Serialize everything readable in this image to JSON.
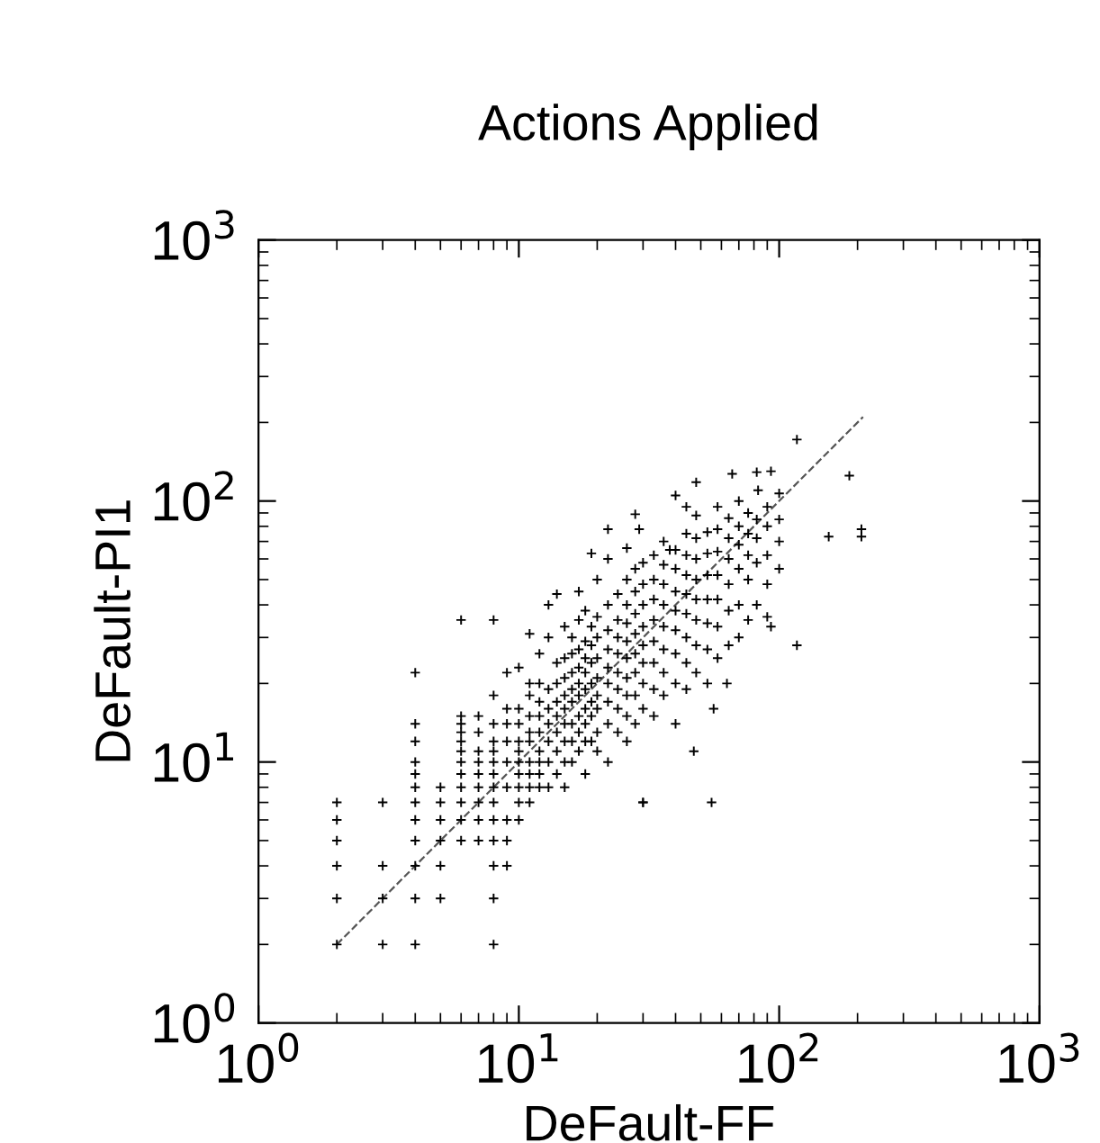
{
  "chart_data": {
    "type": "scatter",
    "title": "Actions Applied",
    "xlabel": "DeFault-FF",
    "ylabel": "DeFault-PI1",
    "log": "xy",
    "grid": false,
    "xlim": [
      1,
      1000
    ],
    "ylim": [
      1,
      1000
    ],
    "xticks": [
      {
        "value": 1,
        "label": "10$^{0}$"
      },
      {
        "value": 10,
        "label": "10$^{1}$"
      },
      {
        "value": 100,
        "label": "10$^{2}$"
      },
      {
        "value": 1000,
        "label": "10$^{3}$"
      }
    ],
    "yticks": [
      {
        "value": 1,
        "label": "10$^{0}$"
      },
      {
        "value": 10,
        "label": "10$^{1}$"
      },
      {
        "value": 100,
        "label": "10$^{2}$"
      },
      {
        "value": 1000,
        "label": "10$^{3}$"
      }
    ],
    "series": [
      {
        "color": "#000000",
        "marker": "cross",
        "x": [
          2,
          2,
          2,
          2,
          2,
          2,
          3,
          3,
          3,
          3,
          4,
          4,
          4,
          4,
          4,
          4,
          4,
          4,
          4,
          4,
          4,
          4,
          5,
          5,
          5,
          5,
          5,
          5,
          6,
          6,
          6,
          6,
          6,
          6,
          6,
          6,
          6,
          6,
          6,
          6,
          7,
          7,
          7,
          7,
          7,
          7,
          7,
          7,
          7,
          8,
          8,
          8,
          8,
          8,
          8,
          8,
          8,
          8,
          8,
          8,
          8,
          8,
          8,
          9,
          9,
          9,
          9,
          9,
          9,
          9,
          9,
          9,
          10,
          10,
          10,
          10,
          10,
          10,
          10,
          10,
          10,
          10,
          11,
          11,
          11,
          11,
          11,
          11,
          11,
          11,
          11,
          12,
          12,
          12,
          12,
          12,
          12,
          12,
          12,
          12,
          13,
          13,
          13,
          13,
          13,
          13,
          13,
          14,
          14,
          14,
          14,
          14,
          14,
          14,
          14,
          15,
          15,
          15,
          15,
          15,
          15,
          15,
          15,
          15,
          16,
          16,
          16,
          16,
          16,
          16,
          16,
          16,
          17,
          17,
          17,
          17,
          17,
          17,
          17,
          17,
          17,
          18,
          18,
          18,
          18,
          18,
          18,
          18,
          18,
          18,
          19,
          19,
          19,
          19,
          19,
          19,
          19,
          19,
          20,
          20,
          20,
          20,
          20,
          20,
          20,
          20,
          20,
          22,
          22,
          22,
          22,
          22,
          22,
          22,
          22,
          22,
          24,
          24,
          24,
          24,
          24,
          24,
          24,
          24,
          26,
          26,
          26,
          26,
          26,
          26,
          26,
          26,
          26,
          26,
          28,
          28,
          28,
          28,
          28,
          28,
          28,
          28,
          28,
          30,
          30,
          30,
          30,
          30,
          30,
          30,
          30,
          30,
          33,
          33,
          33,
          33,
          33,
          33,
          33,
          33,
          36,
          36,
          36,
          36,
          36,
          36,
          36,
          36,
          40,
          40,
          40,
          40,
          40,
          40,
          40,
          40,
          40,
          44,
          44,
          44,
          44,
          44,
          44,
          44,
          44,
          44,
          48,
          48,
          48,
          48,
          48,
          48,
          48,
          48,
          53,
          53,
          53,
          53,
          53,
          53,
          53,
          58,
          58,
          58,
          58,
          58,
          58,
          58,
          64,
          64,
          64,
          64,
          64,
          64,
          70,
          70,
          70,
          70,
          70,
          70,
          76,
          76,
          76,
          76,
          76,
          82,
          82,
          82,
          82,
          82,
          90,
          90,
          90,
          90,
          90,
          100,
          100,
          100,
          117,
          186,
          207,
          207,
          155,
          117,
          55,
          30,
          47,
          56,
          63,
          93,
          83,
          48,
          38,
          29,
          22,
          13,
          11,
          66,
          100,
          93
        ],
        "values": [
          2,
          3,
          4,
          5,
          6,
          7,
          2,
          3,
          4,
          7,
          2,
          3,
          4,
          5,
          6,
          7,
          8,
          9,
          10,
          12,
          14,
          22,
          3,
          4,
          5,
          6,
          7,
          8,
          5,
          6,
          7,
          8,
          9,
          10,
          11,
          12,
          13,
          14,
          15,
          35,
          5,
          6,
          7,
          8,
          9,
          10,
          11,
          13,
          15,
          2,
          3,
          4,
          5,
          6,
          7,
          8,
          9,
          10,
          11,
          12,
          14,
          18,
          35,
          4,
          5,
          6,
          8,
          10,
          12,
          14,
          16,
          22,
          6,
          7,
          8,
          9,
          10,
          11,
          12,
          14,
          16,
          23,
          7,
          8,
          9,
          10,
          12,
          13,
          15,
          18,
          31,
          8,
          9,
          10,
          11,
          13,
          15,
          17,
          20,
          26,
          8,
          10,
          12,
          14,
          16,
          19,
          40,
          9,
          11,
          13,
          15,
          17,
          20,
          24,
          44,
          8,
          10,
          12,
          14,
          16,
          18,
          21,
          25,
          33,
          10,
          12,
          14,
          17,
          19,
          22,
          26,
          30,
          11,
          13,
          15,
          18,
          20,
          23,
          27,
          35,
          45,
          9,
          12,
          14,
          16,
          19,
          22,
          25,
          29,
          38,
          12,
          15,
          17,
          20,
          24,
          28,
          33,
          63,
          11,
          13,
          16,
          18,
          21,
          25,
          30,
          36,
          50,
          10,
          14,
          17,
          20,
          23,
          27,
          32,
          40,
          78,
          13,
          16,
          19,
          22,
          26,
          30,
          35,
          44,
          12,
          15,
          18,
          21,
          25,
          29,
          34,
          40,
          50,
          66,
          14,
          18,
          22,
          26,
          31,
          37,
          45,
          55,
          89,
          7,
          16,
          20,
          24,
          28,
          33,
          40,
          48,
          58,
          15,
          19,
          24,
          29,
          35,
          42,
          50,
          62,
          18,
          22,
          27,
          33,
          40,
          48,
          57,
          70,
          14,
          20,
          26,
          32,
          38,
          45,
          55,
          65,
          105,
          19,
          24,
          30,
          37,
          44,
          52,
          62,
          75,
          95,
          22,
          28,
          35,
          42,
          50,
          60,
          72,
          118,
          20,
          27,
          34,
          42,
          52,
          63,
          76,
          25,
          33,
          42,
          52,
          64,
          78,
          95,
          28,
          38,
          48,
          60,
          72,
          86,
          30,
          40,
          55,
          68,
          80,
          100,
          35,
          50,
          62,
          75,
          90,
          40,
          58,
          72,
          85,
          129,
          36,
          48,
          62,
          80,
          95,
          55,
          70,
          85,
          172,
          125,
          78,
          73,
          73,
          28,
          7,
          7,
          11,
          16,
          20,
          33,
          110,
          88,
          65,
          78,
          60,
          30,
          20,
          127,
          107,
          130
        ]
      },
      {
        "type": "line",
        "color": "#555555",
        "line_style": "dashed",
        "marker": "none",
        "x": [
          2,
          210
        ],
        "values": [
          2,
          210
        ]
      }
    ]
  }
}
